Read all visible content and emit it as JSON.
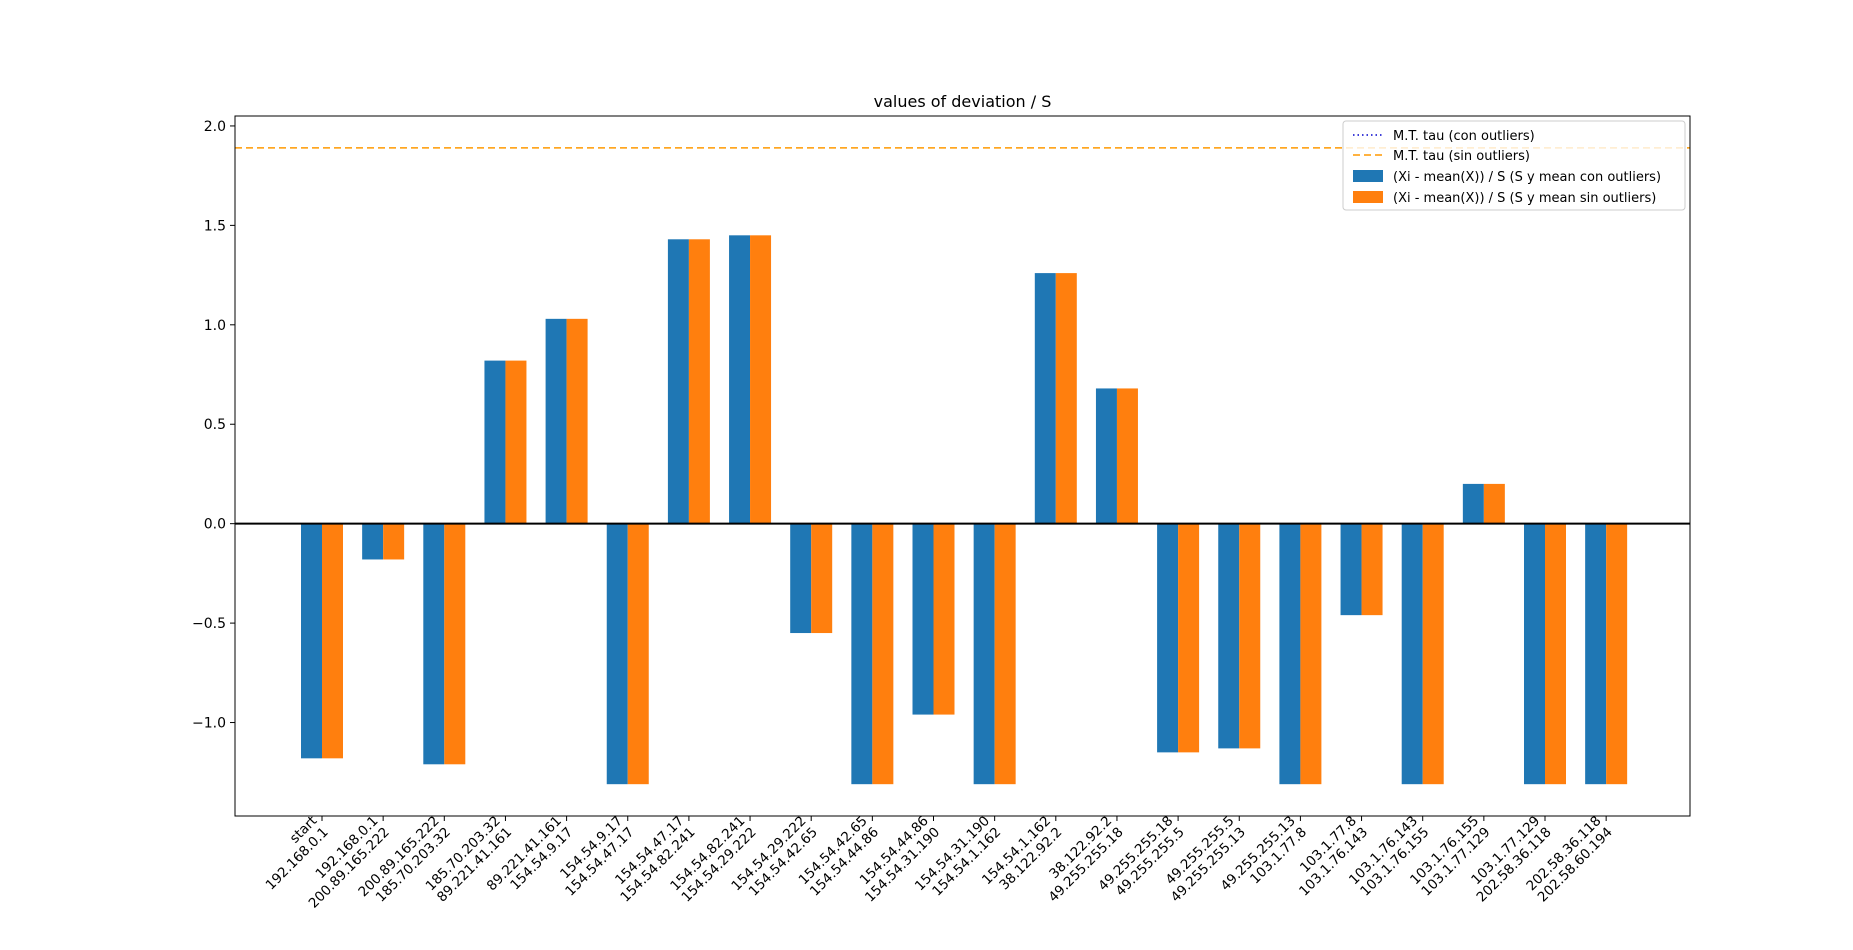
{
  "chart_data": {
    "type": "bar",
    "title": "values of deviation / S",
    "xlabel": "",
    "ylabel": "",
    "ylim": [
      -1.47,
      2.05
    ],
    "yticks": [
      -1.0,
      -0.5,
      0.0,
      0.5,
      1.0,
      1.5,
      2.0
    ],
    "ytick_labels": [
      "−1.0",
      "−0.5",
      "0.0",
      "0.5",
      "1.0",
      "1.5",
      "2.0"
    ],
    "grid": false,
    "legend_position": "top-right",
    "categories": [
      [
        "start",
        "192.168.0.1"
      ],
      [
        "192.168.0.1",
        "200.89.165.222"
      ],
      [
        "200.89.165.222",
        "185.70.203.32"
      ],
      [
        "185.70.203.32",
        "89.221.41.161"
      ],
      [
        "89.221.41.161",
        "154.54.9.17"
      ],
      [
        "154.54.9.17",
        "154.54.47.17"
      ],
      [
        "154.54.47.17",
        "154.54.82.241"
      ],
      [
        "154.54.82.241",
        "154.54.29.222"
      ],
      [
        "154.54.29.222",
        "154.54.42.65"
      ],
      [
        "154.54.42.65",
        "154.54.44.86"
      ],
      [
        "154.54.44.86",
        "154.54.31.190"
      ],
      [
        "154.54.31.190",
        "154.54.1.162"
      ],
      [
        "154.54.1.162",
        "38.122.92.2"
      ],
      [
        "38.122.92.2",
        "49.255.255.18"
      ],
      [
        "49.255.255.18",
        "49.255.255.5"
      ],
      [
        "49.255.255.5",
        "49.255.255.13"
      ],
      [
        "49.255.255.13",
        "103.1.77.8"
      ],
      [
        "103.1.77.8",
        "103.1.76.143"
      ],
      [
        "103.1.76.143",
        "103.1.76.155"
      ],
      [
        "103.1.76.155",
        "103.1.77.129"
      ],
      [
        "103.1.77.129",
        "202.58.36.118"
      ],
      [
        "202.58.36.118",
        "202.58.60.194"
      ]
    ],
    "series": [
      {
        "name": "(Xi - mean(X)) / S (S y mean con outliers)",
        "color": "#1f77b4",
        "values": [
          -1.18,
          -0.18,
          -1.21,
          0.82,
          1.03,
          -1.31,
          1.43,
          1.45,
          -0.55,
          -1.31,
          -0.96,
          -1.31,
          1.26,
          0.68,
          -1.15,
          -1.13,
          -1.31,
          -0.46,
          -1.31,
          0.2,
          -1.31,
          -1.31
        ]
      },
      {
        "name": "(Xi - mean(X)) / S (S y mean sin outliers)",
        "color": "#ff7f0e",
        "values": [
          -1.18,
          -0.18,
          -1.21,
          0.82,
          1.03,
          -1.31,
          1.43,
          1.45,
          -0.55,
          -1.31,
          -0.96,
          -1.31,
          1.26,
          0.68,
          -1.15,
          -1.13,
          -1.31,
          -0.46,
          -1.31,
          0.2,
          -1.31,
          -1.31
        ]
      }
    ],
    "reference_lines": [
      {
        "name": "M.T. tau (con outliers)",
        "color": "#0000cc",
        "style": "dotted",
        "value": null
      },
      {
        "name": "M.T. tau (sin outliers)",
        "color": "#ff9900",
        "style": "dashed",
        "value": 1.89
      }
    ],
    "zero_line": true
  }
}
